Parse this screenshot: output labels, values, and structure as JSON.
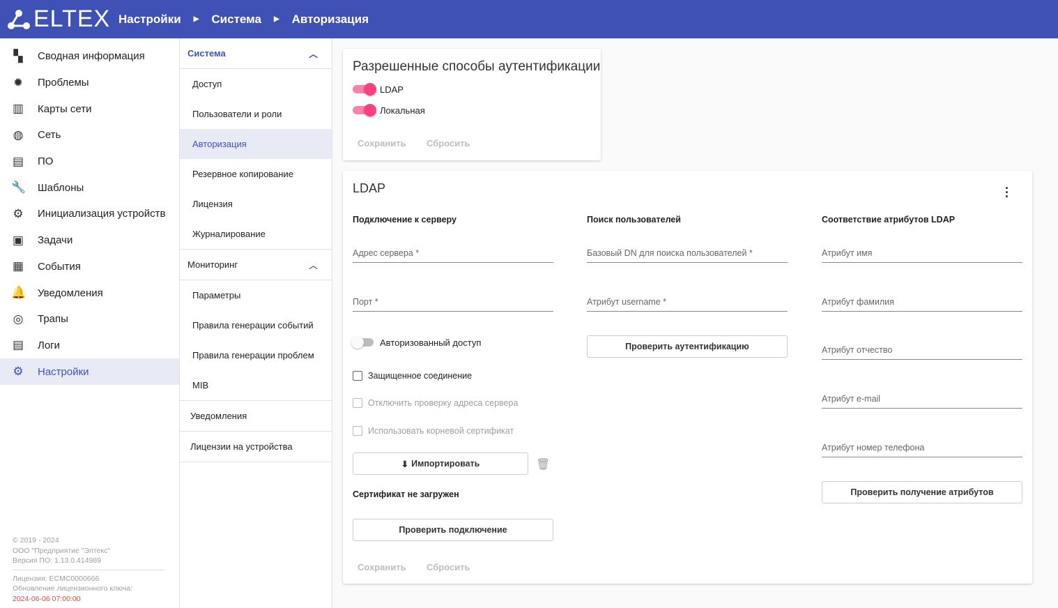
{
  "header": {
    "logo": "ELTEX",
    "breadcrumb": [
      "Настройки",
      "Система",
      "Авторизация"
    ]
  },
  "sidebar": {
    "items": [
      {
        "label": "Сводная информация",
        "icon": "dashboard-icon"
      },
      {
        "label": "Проблемы",
        "icon": "alarm-light-icon"
      },
      {
        "label": "Карты сети",
        "icon": "map-icon"
      },
      {
        "label": "Сеть",
        "icon": "globe-icon"
      },
      {
        "label": "ПО",
        "icon": "store-icon"
      },
      {
        "label": "Шаблоны",
        "icon": "wrench-icon"
      },
      {
        "label": "Инициализация устройств",
        "icon": "auto-settings-icon"
      },
      {
        "label": "Задачи",
        "icon": "clipboard-icon"
      },
      {
        "label": "События",
        "icon": "calendar-icon"
      },
      {
        "label": "Уведомления",
        "icon": "bell-icon"
      },
      {
        "label": "Трапы",
        "icon": "target-icon"
      },
      {
        "label": "Логи",
        "icon": "log-icon"
      },
      {
        "label": "Настройки",
        "icon": "gear-icon",
        "active": true
      }
    ],
    "footer": {
      "copyright": "© 2019 - 2024",
      "company": "ООО \"Предприятие \"Элтекс\"",
      "version": "Версия ПО: 1.13.0.414989",
      "license": "Лицензия: ECMC0000666",
      "key_update_label": "Обновление лицензионного ключа:",
      "key_update_date": "2024-06-06 07:00:00",
      "alert_color": "#f44336"
    }
  },
  "submenu": {
    "system": {
      "title": "Система",
      "items": [
        "Доступ",
        "Пользователи и роли",
        "Авторизация",
        "Резервное копирование",
        "Лицензия",
        "Журналирование"
      ]
    },
    "monitoring": {
      "title": "Мониторинг",
      "items": [
        "Параметры",
        "Правила генерации событий",
        "Правила генерации проблем",
        "MIB"
      ]
    },
    "notifications": "Уведомления",
    "device_licenses": "Лицензии на устройства"
  },
  "auth_card": {
    "title": "Разрешенные способы аутентификации",
    "ldap": "LDAP",
    "ldap_on": true,
    "local": "Локальная",
    "local_on": true,
    "save": "Сохранить",
    "reset": "Сбросить"
  },
  "ldap_card": {
    "title": "LDAP",
    "connection": {
      "title": "Подключение к серверу",
      "server": "Адрес сервера *",
      "port": "Порт *",
      "authorized_access": "Авторизованный доступ",
      "authorized_on": false,
      "secure": "Защищенное соединение",
      "disable_check": "Отключить проверку адреса сервера",
      "root_cert": "Использовать корневой сертификат",
      "import": "Импортировать",
      "cert_status": "Сертификат не загружен",
      "test_connection": "Проверить подключение"
    },
    "search": {
      "title": "Поиск пользователей",
      "base_dn": "Базовый DN для поиска пользователей *",
      "username": "Атрибут username *",
      "test_auth": "Проверить аутентификацию"
    },
    "attrs": {
      "title": "Соответствие атрибутов LDAP",
      "first": "Атрибут имя",
      "last": "Атрибут фамилия",
      "middle": "Атрибут отчество",
      "email": "Атрибут e-mail",
      "phone": "Атрибут номер телефона",
      "test_attrs": "Проверить получение атрибутов"
    },
    "save": "Сохранить",
    "reset": "Сбросить"
  },
  "colors": {
    "primary": "#3f51b5",
    "accent": "#ff4081"
  }
}
